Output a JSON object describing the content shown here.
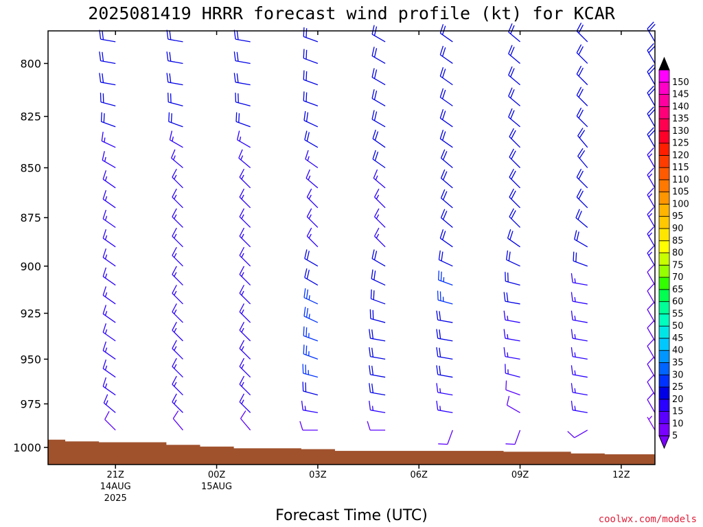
{
  "chart_data": {
    "type": "wind-barb-profile",
    "title": "2025081419 HRRR forecast wind profile (kt) for KCAR",
    "xlabel": "Forecast Time (UTC)",
    "ylabel": "",
    "credit": "coolwx.com/models",
    "y_scale": "log-pressure",
    "ylim": [
      1010,
      785
    ],
    "xlim": [
      -2.0,
      16.0
    ],
    "y_ticks": [
      800,
      825,
      850,
      875,
      900,
      925,
      950,
      975,
      1000
    ],
    "x_ticks": [
      {
        "x": 0,
        "lines": [
          "21Z",
          "14AUG",
          "2025"
        ]
      },
      {
        "x": 3,
        "lines": [
          "00Z",
          "15AUG"
        ]
      },
      {
        "x": 6,
        "lines": [
          "03Z"
        ]
      },
      {
        "x": 9,
        "lines": [
          "06Z"
        ]
      },
      {
        "x": 12,
        "lines": [
          "09Z"
        ]
      },
      {
        "x": 15,
        "lines": [
          "12Z"
        ]
      }
    ],
    "forecast_hours": [
      0,
      2,
      4,
      6,
      8,
      10,
      12,
      14,
      16
    ],
    "surface_pressure": [
      {
        "x0": -2.0,
        "x1": -1.5,
        "p": 995.5
      },
      {
        "x0": -1.5,
        "x1": -0.5,
        "p": 996.5
      },
      {
        "x0": -0.5,
        "x1": 1.5,
        "p": 997.0
      },
      {
        "x0": 1.5,
        "x1": 2.5,
        "p": 998.5
      },
      {
        "x0": 2.5,
        "x1": 3.5,
        "p": 999.5
      },
      {
        "x0": 3.5,
        "x1": 5.5,
        "p": 1000.5
      },
      {
        "x0": 5.5,
        "x1": 6.5,
        "p": 1001.0
      },
      {
        "x0": 6.5,
        "x1": 11.5,
        "p": 1002.0
      },
      {
        "x0": 11.5,
        "x1": 13.5,
        "p": 1002.5
      },
      {
        "x0": 13.5,
        "x1": 14.5,
        "p": 1003.5
      },
      {
        "x0": 14.5,
        "x1": 16.0,
        "p": 1004.0
      }
    ],
    "barb_levels": [
      790,
      800,
      810,
      820,
      830,
      840,
      850,
      860,
      870,
      880,
      890,
      900,
      910,
      920,
      930,
      940,
      950,
      960,
      970,
      980,
      990
    ],
    "speed_profiles_kt": [
      [
        20,
        20,
        20,
        20,
        20,
        15,
        15,
        15,
        15,
        15,
        15,
        15,
        15,
        15,
        15,
        15,
        15,
        15,
        15,
        15,
        10
      ],
      [
        20,
        20,
        20,
        20,
        20,
        15,
        15,
        15,
        15,
        15,
        15,
        15,
        15,
        15,
        15,
        15,
        15,
        15,
        15,
        15,
        10
      ],
      [
        20,
        20,
        20,
        20,
        20,
        15,
        15,
        15,
        15,
        15,
        15,
        15,
        15,
        15,
        15,
        15,
        15,
        15,
        15,
        15,
        10
      ],
      [
        20,
        20,
        20,
        20,
        20,
        20,
        15,
        15,
        15,
        15,
        15,
        20,
        20,
        25,
        25,
        25,
        25,
        25,
        20,
        15,
        10
      ],
      [
        20,
        20,
        20,
        20,
        20,
        20,
        20,
        15,
        15,
        15,
        15,
        20,
        20,
        20,
        20,
        20,
        20,
        20,
        20,
        15,
        10
      ],
      [
        20,
        20,
        20,
        20,
        20,
        20,
        20,
        20,
        20,
        20,
        20,
        20,
        25,
        25,
        20,
        20,
        20,
        20,
        15,
        15,
        10
      ],
      [
        20,
        20,
        20,
        20,
        20,
        20,
        20,
        20,
        20,
        20,
        20,
        20,
        20,
        20,
        15,
        15,
        15,
        15,
        10,
        10,
        10
      ],
      [
        20,
        20,
        20,
        20,
        20,
        20,
        20,
        20,
        20,
        20,
        20,
        20,
        15,
        15,
        15,
        15,
        15,
        15,
        15,
        15,
        10
      ],
      [
        20,
        20,
        20,
        20,
        20,
        20,
        15,
        15,
        15,
        15,
        15,
        15,
        10,
        10,
        10,
        10,
        10,
        10,
        10,
        10,
        5
      ]
    ],
    "direction_profiles_deg": [
      [
        280,
        280,
        280,
        285,
        290,
        295,
        300,
        305,
        305,
        305,
        305,
        305,
        305,
        305,
        305,
        305,
        305,
        305,
        305,
        310,
        315
      ],
      [
        280,
        280,
        280,
        285,
        290,
        300,
        310,
        315,
        315,
        315,
        315,
        315,
        315,
        315,
        315,
        315,
        315,
        315,
        315,
        315,
        320
      ],
      [
        280,
        280,
        280,
        285,
        290,
        300,
        310,
        315,
        315,
        315,
        315,
        315,
        315,
        315,
        315,
        315,
        315,
        315,
        315,
        315,
        320
      ],
      [
        290,
        290,
        290,
        290,
        295,
        300,
        305,
        310,
        315,
        315,
        315,
        300,
        300,
        295,
        295,
        290,
        290,
        285,
        285,
        280,
        270
      ],
      [
        300,
        300,
        300,
        300,
        300,
        305,
        305,
        310,
        315,
        315,
        315,
        300,
        295,
        290,
        285,
        280,
        280,
        280,
        280,
        280,
        270
      ],
      [
        305,
        305,
        305,
        305,
        305,
        305,
        310,
        310,
        310,
        310,
        305,
        295,
        290,
        285,
        280,
        280,
        280,
        280,
        280,
        280,
        200
      ],
      [
        310,
        310,
        310,
        310,
        310,
        315,
        315,
        315,
        315,
        315,
        305,
        295,
        285,
        280,
        280,
        280,
        280,
        285,
        290,
        300,
        200
      ],
      [
        315,
        315,
        315,
        315,
        315,
        320,
        320,
        315,
        315,
        310,
        300,
        290,
        280,
        280,
        280,
        280,
        280,
        280,
        280,
        280,
        240
      ],
      [
        330,
        330,
        330,
        330,
        330,
        330,
        330,
        330,
        330,
        330,
        330,
        330,
        330,
        330,
        330,
        330,
        330,
        330,
        330,
        330,
        330
      ]
    ],
    "colorbar": {
      "labels": [
        "5",
        "10",
        "15",
        "20",
        "25",
        "30",
        "35",
        "40",
        "45",
        "50",
        "55",
        "60",
        "65",
        "70",
        "75",
        "80",
        "85",
        "90",
        "95",
        "100",
        "105",
        "110",
        "115",
        "120",
        "125",
        "130",
        "135",
        "140",
        "145",
        "150"
      ],
      "colors": [
        "#7a00ff",
        "#5a00ff",
        "#2a00ff",
        "#0000e6",
        "#0032ff",
        "#0064ff",
        "#0096ff",
        "#00c8ff",
        "#00e6e6",
        "#00ffbe",
        "#00ff96",
        "#00ff50",
        "#32ff00",
        "#96ff00",
        "#c8ff00",
        "#ffff00",
        "#ffe600",
        "#ffc800",
        "#ffb400",
        "#ff9600",
        "#ff7800",
        "#ff5a00",
        "#ff3c00",
        "#ff1e00",
        "#ff0028",
        "#ff0050",
        "#ff0078",
        "#ff00a0",
        "#ff00c8",
        "#ff00ff"
      ],
      "over_color": "#000000",
      "under_color": "#7a00ff"
    },
    "terrain_color": "#a0522d"
  }
}
